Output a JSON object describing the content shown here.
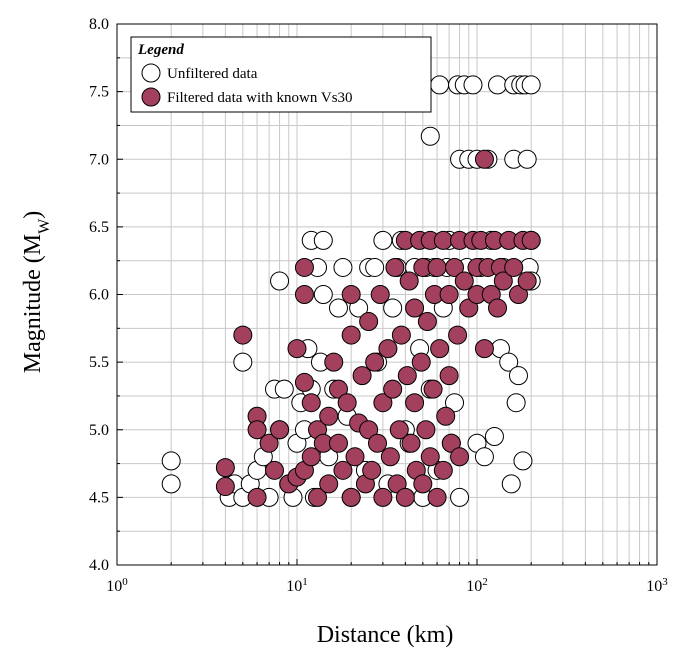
{
  "chart_data": {
    "type": "scatter",
    "title": "",
    "xlabel": "Distance (km)",
    "ylabel_main": "Magnitude (M",
    "ylabel_sub": "W",
    "ylabel_close": ")",
    "x_scale": "log",
    "xlim": [
      1,
      1000
    ],
    "ylim": [
      4.0,
      8.0
    ],
    "x_ticks": [
      {
        "value": 1,
        "base": "10",
        "exp": "0"
      },
      {
        "value": 10,
        "base": "10",
        "exp": "1"
      },
      {
        "value": 100,
        "base": "10",
        "exp": "2"
      },
      {
        "value": 1000,
        "base": "10",
        "exp": "3"
      }
    ],
    "y_ticks": [
      {
        "value": 4.0,
        "label": "4.0"
      },
      {
        "value": 4.5,
        "label": "4.5"
      },
      {
        "value": 5.0,
        "label": "5.0"
      },
      {
        "value": 5.5,
        "label": "5.5"
      },
      {
        "value": 6.0,
        "label": "6.0"
      },
      {
        "value": 6.5,
        "label": "6.5"
      },
      {
        "value": 7.0,
        "label": "7.0"
      },
      {
        "value": 7.5,
        "label": "7.5"
      },
      {
        "value": 8.0,
        "label": "8.0"
      }
    ],
    "grid": true,
    "legend": {
      "title": "Legend",
      "placement": "top-left",
      "entries": [
        "Unfiltered data",
        "Filtered data with known Vs30"
      ]
    },
    "series": [
      {
        "name": "Unfiltered data",
        "color": "#ffffff",
        "stroke": "#000000",
        "points": [
          [
            2.0,
            4.77
          ],
          [
            2.0,
            4.6
          ],
          [
            4.2,
            4.5
          ],
          [
            4.5,
            4.6
          ],
          [
            5.0,
            4.5
          ],
          [
            5.0,
            5.5
          ],
          [
            5.5,
            4.6
          ],
          [
            6.0,
            4.7
          ],
          [
            6.5,
            4.8
          ],
          [
            7.0,
            4.5
          ],
          [
            7.5,
            5.3
          ],
          [
            8.0,
            6.1
          ],
          [
            8.0,
            5.0
          ],
          [
            8.5,
            5.3
          ],
          [
            9.0,
            4.6
          ],
          [
            9.5,
            4.5
          ],
          [
            10.0,
            4.9
          ],
          [
            10.5,
            5.2
          ],
          [
            11.0,
            5.0
          ],
          [
            11.5,
            5.6
          ],
          [
            12.0,
            6.4
          ],
          [
            12.0,
            5.3
          ],
          [
            12.5,
            4.5
          ],
          [
            13.0,
            6.2
          ],
          [
            13.5,
            5.5
          ],
          [
            14.0,
            6.0
          ],
          [
            14.0,
            6.4
          ],
          [
            15.0,
            4.8
          ],
          [
            16.0,
            5.3
          ],
          [
            17.0,
            5.9
          ],
          [
            18.0,
            6.2
          ],
          [
            19.0,
            5.1
          ],
          [
            20.0,
            4.5
          ],
          [
            22.0,
            5.9
          ],
          [
            24.0,
            4.7
          ],
          [
            25.0,
            6.2
          ],
          [
            27.0,
            6.2
          ],
          [
            28.0,
            5.5
          ],
          [
            30.0,
            6.4
          ],
          [
            32.0,
            4.6
          ],
          [
            34.0,
            5.9
          ],
          [
            36.0,
            6.2
          ],
          [
            38.0,
            6.4
          ],
          [
            40.0,
            5.0
          ],
          [
            42.0,
            4.9
          ],
          [
            45.0,
            6.2
          ],
          [
            48.0,
            5.6
          ],
          [
            50.0,
            4.5
          ],
          [
            52.0,
            6.2
          ],
          [
            55.0,
            7.17
          ],
          [
            55.0,
            5.3
          ],
          [
            58.0,
            6.2
          ],
          [
            60.0,
            4.7
          ],
          [
            62.0,
            7.55
          ],
          [
            65.0,
            5.9
          ],
          [
            68.0,
            6.2
          ],
          [
            70.0,
            6.4
          ],
          [
            72.0,
            4.9
          ],
          [
            75.0,
            5.2
          ],
          [
            78.0,
            7.55
          ],
          [
            80.0,
            7.0
          ],
          [
            80.0,
            4.5
          ],
          [
            85.0,
            7.55
          ],
          [
            88.0,
            6.2
          ],
          [
            90.0,
            7.0
          ],
          [
            95.0,
            7.55
          ],
          [
            100.0,
            7.0
          ],
          [
            100.0,
            4.9
          ],
          [
            105.0,
            6.2
          ],
          [
            110.0,
            4.8
          ],
          [
            115.0,
            7.0
          ],
          [
            120.0,
            6.4
          ],
          [
            125.0,
            4.95
          ],
          [
            130.0,
            7.55
          ],
          [
            135.0,
            5.6
          ],
          [
            140.0,
            6.2
          ],
          [
            150.0,
            5.5
          ],
          [
            155.0,
            4.6
          ],
          [
            160.0,
            7.55
          ],
          [
            160.0,
            7.0
          ],
          [
            165.0,
            5.2
          ],
          [
            170.0,
            5.4
          ],
          [
            175.0,
            7.55
          ],
          [
            180.0,
            4.77
          ],
          [
            185.0,
            7.55
          ],
          [
            190.0,
            7.0
          ],
          [
            195.0,
            6.2
          ],
          [
            200.0,
            6.4
          ],
          [
            200.0,
            6.1
          ],
          [
            200.0,
            7.55
          ]
        ]
      },
      {
        "name": "Filtered data with known Vs30",
        "color": "#a3405e",
        "stroke": "#000000",
        "points": [
          [
            4.0,
            4.72
          ],
          [
            4.0,
            4.58
          ],
          [
            5.0,
            5.7
          ],
          [
            6.0,
            5.1
          ],
          [
            6.0,
            4.5
          ],
          [
            6.0,
            5.0
          ],
          [
            7.0,
            4.9
          ],
          [
            7.5,
            4.7
          ],
          [
            8.0,
            5.0
          ],
          [
            9.0,
            4.6
          ],
          [
            10.0,
            5.6
          ],
          [
            10.0,
            4.65
          ],
          [
            11.0,
            6.2
          ],
          [
            11.0,
            6.0
          ],
          [
            11.0,
            5.35
          ],
          [
            11.0,
            4.7
          ],
          [
            12.0,
            5.2
          ],
          [
            12.0,
            4.8
          ],
          [
            13.0,
            5.0
          ],
          [
            13.0,
            4.5
          ],
          [
            14.0,
            4.9
          ],
          [
            15.0,
            5.1
          ],
          [
            15.0,
            4.6
          ],
          [
            16.0,
            5.5
          ],
          [
            17.0,
            4.9
          ],
          [
            17.0,
            5.3
          ],
          [
            18.0,
            4.7
          ],
          [
            19.0,
            5.2
          ],
          [
            20.0,
            6.0
          ],
          [
            20.0,
            4.5
          ],
          [
            20.0,
            5.7
          ],
          [
            21.0,
            4.8
          ],
          [
            22.0,
            5.05
          ],
          [
            23.0,
            5.4
          ],
          [
            24.0,
            4.6
          ],
          [
            25.0,
            5.8
          ],
          [
            25.0,
            5.0
          ],
          [
            26.0,
            4.7
          ],
          [
            27.0,
            5.5
          ],
          [
            28.0,
            4.9
          ],
          [
            29.0,
            6.0
          ],
          [
            30.0,
            4.5
          ],
          [
            30.0,
            5.2
          ],
          [
            32.0,
            5.6
          ],
          [
            33.0,
            4.8
          ],
          [
            34.0,
            5.3
          ],
          [
            35.0,
            6.2
          ],
          [
            36.0,
            4.6
          ],
          [
            37.0,
            5.0
          ],
          [
            38.0,
            5.7
          ],
          [
            40.0,
            6.4
          ],
          [
            40.0,
            4.5
          ],
          [
            41.0,
            5.4
          ],
          [
            42.0,
            6.1
          ],
          [
            43.0,
            4.9
          ],
          [
            45.0,
            5.9
          ],
          [
            45.0,
            5.2
          ],
          [
            46.0,
            4.7
          ],
          [
            48.0,
            6.4
          ],
          [
            49.0,
            5.5
          ],
          [
            50.0,
            6.2
          ],
          [
            50.0,
            4.6
          ],
          [
            52.0,
            5.0
          ],
          [
            53.0,
            5.8
          ],
          [
            55.0,
            6.4
          ],
          [
            55.0,
            4.8
          ],
          [
            57.0,
            5.3
          ],
          [
            58.0,
            6.0
          ],
          [
            60.0,
            4.5
          ],
          [
            60.0,
            6.2
          ],
          [
            62.0,
            5.6
          ],
          [
            65.0,
            6.4
          ],
          [
            65.0,
            4.7
          ],
          [
            67.0,
            5.1
          ],
          [
            70.0,
            6.0
          ],
          [
            70.0,
            5.4
          ],
          [
            72.0,
            4.9
          ],
          [
            75.0,
            6.2
          ],
          [
            78.0,
            5.7
          ],
          [
            80.0,
            6.4
          ],
          [
            80.0,
            4.8
          ],
          [
            85.0,
            6.1
          ],
          [
            90.0,
            5.9
          ],
          [
            95.0,
            6.4
          ],
          [
            100.0,
            6.2
          ],
          [
            100.0,
            6.0
          ],
          [
            105.0,
            6.4
          ],
          [
            110.0,
            7.0
          ],
          [
            110.0,
            5.6
          ],
          [
            115.0,
            6.2
          ],
          [
            120.0,
            6.0
          ],
          [
            125.0,
            6.4
          ],
          [
            130.0,
            5.9
          ],
          [
            135.0,
            6.2
          ],
          [
            140.0,
            6.1
          ],
          [
            150.0,
            6.4
          ],
          [
            160.0,
            6.2
          ],
          [
            170.0,
            6.0
          ],
          [
            180.0,
            6.4
          ],
          [
            190.0,
            6.1
          ],
          [
            200.0,
            6.4
          ]
        ]
      }
    ]
  }
}
